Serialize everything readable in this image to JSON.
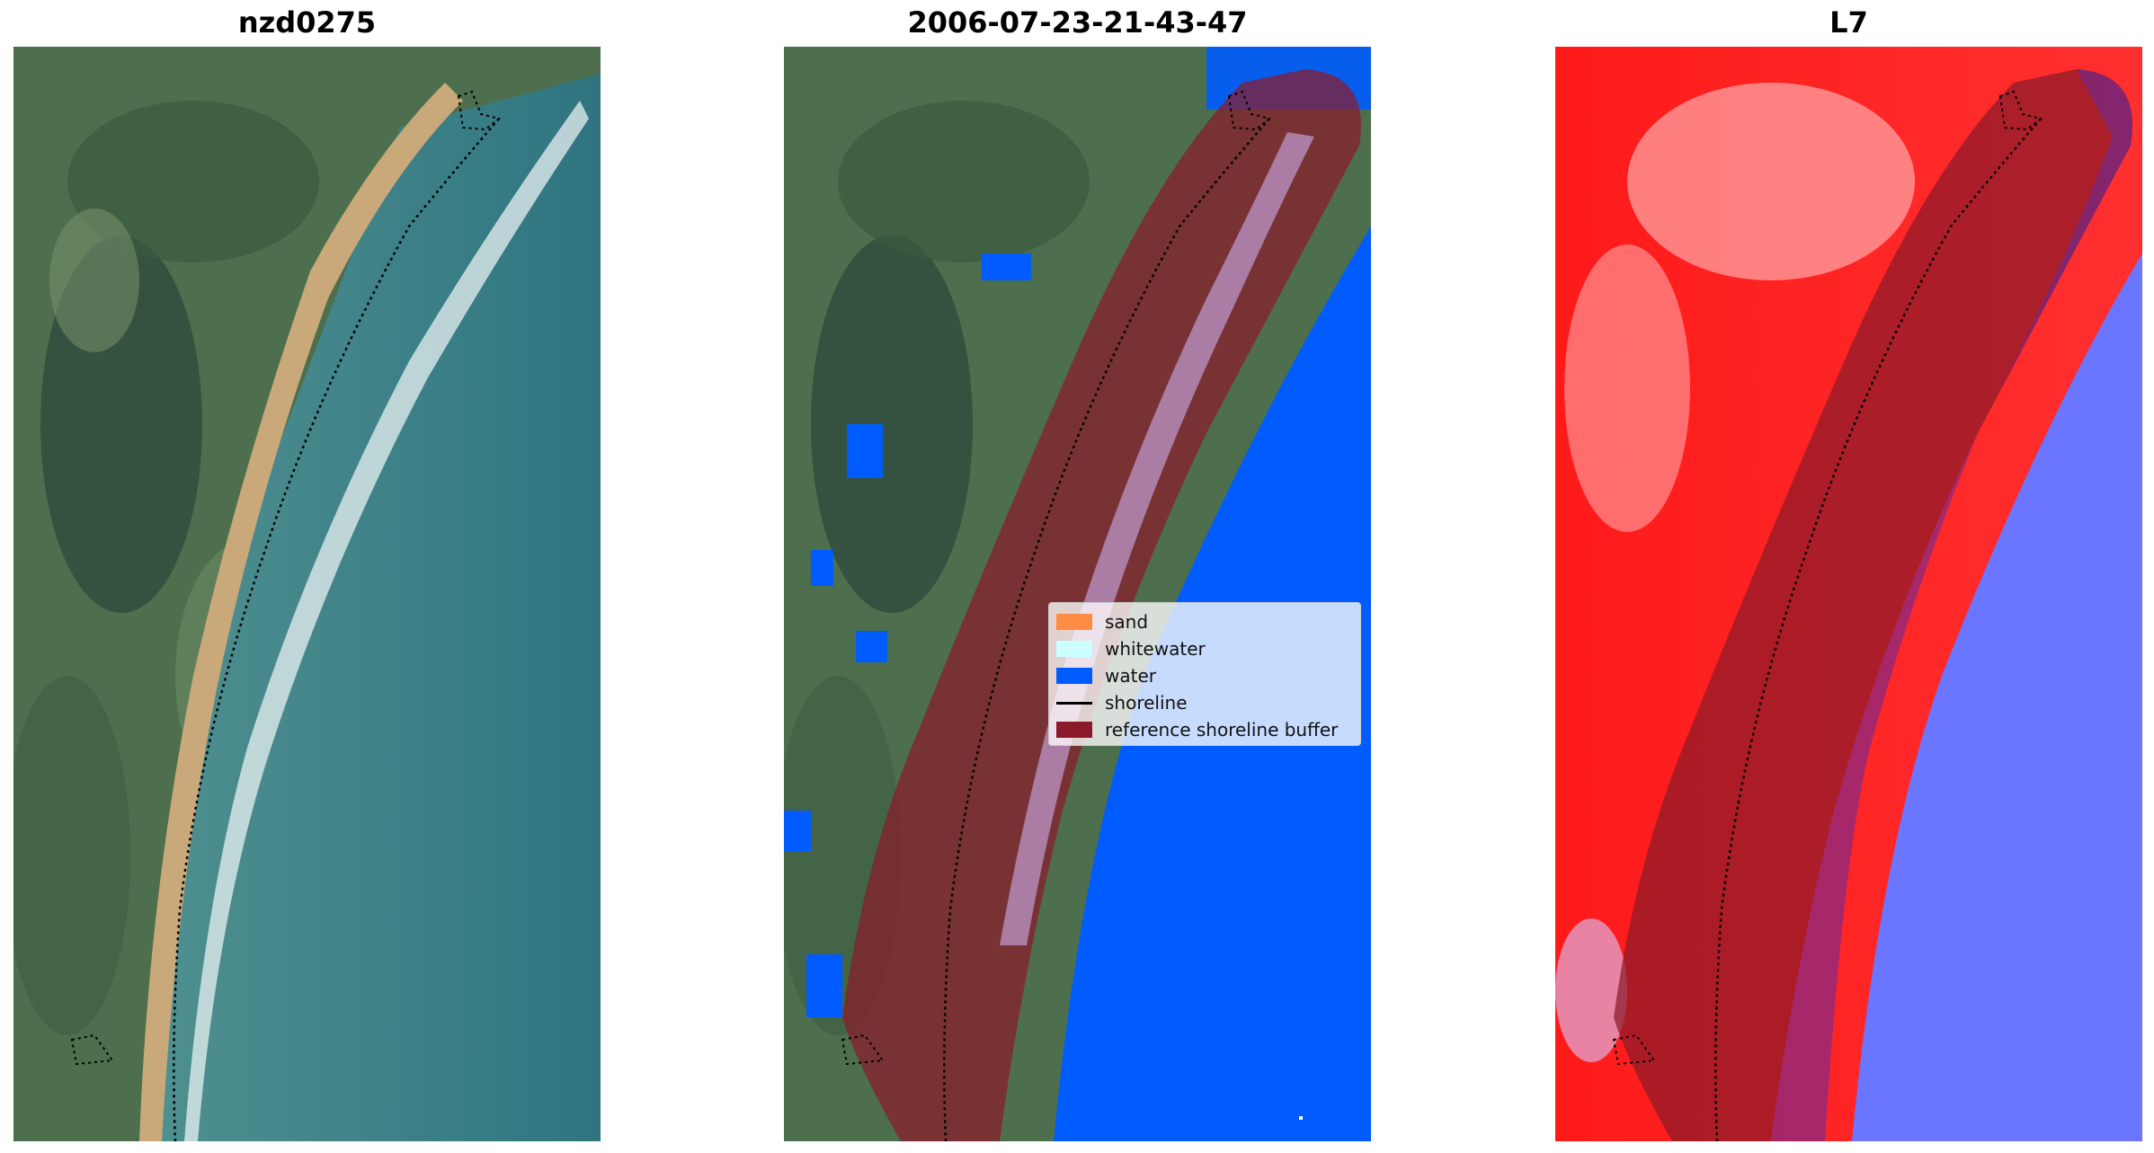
{
  "panels": [
    {
      "title": "nzd0275"
    },
    {
      "title": "2006-07-23-21-43-47"
    },
    {
      "title": "L7"
    }
  ],
  "legend": {
    "items": [
      {
        "label": "sand",
        "color": "#ff8c42",
        "kind": "patch"
      },
      {
        "label": "whitewater",
        "color": "#ccffff",
        "kind": "patch"
      },
      {
        "label": "water",
        "color": "#005cff",
        "kind": "patch"
      },
      {
        "label": "shoreline",
        "color": "#000000",
        "kind": "line"
      },
      {
        "label": "reference shoreline buffer",
        "color": "#8b1a2a",
        "kind": "patch"
      }
    ]
  },
  "colors": {
    "buffer": "#8b1a2a",
    "water": "#005cff",
    "sand": "#ff8c42",
    "whitewater": "#ccffff",
    "index_positive": "#ff0000",
    "index_negative": "#3333ff"
  }
}
